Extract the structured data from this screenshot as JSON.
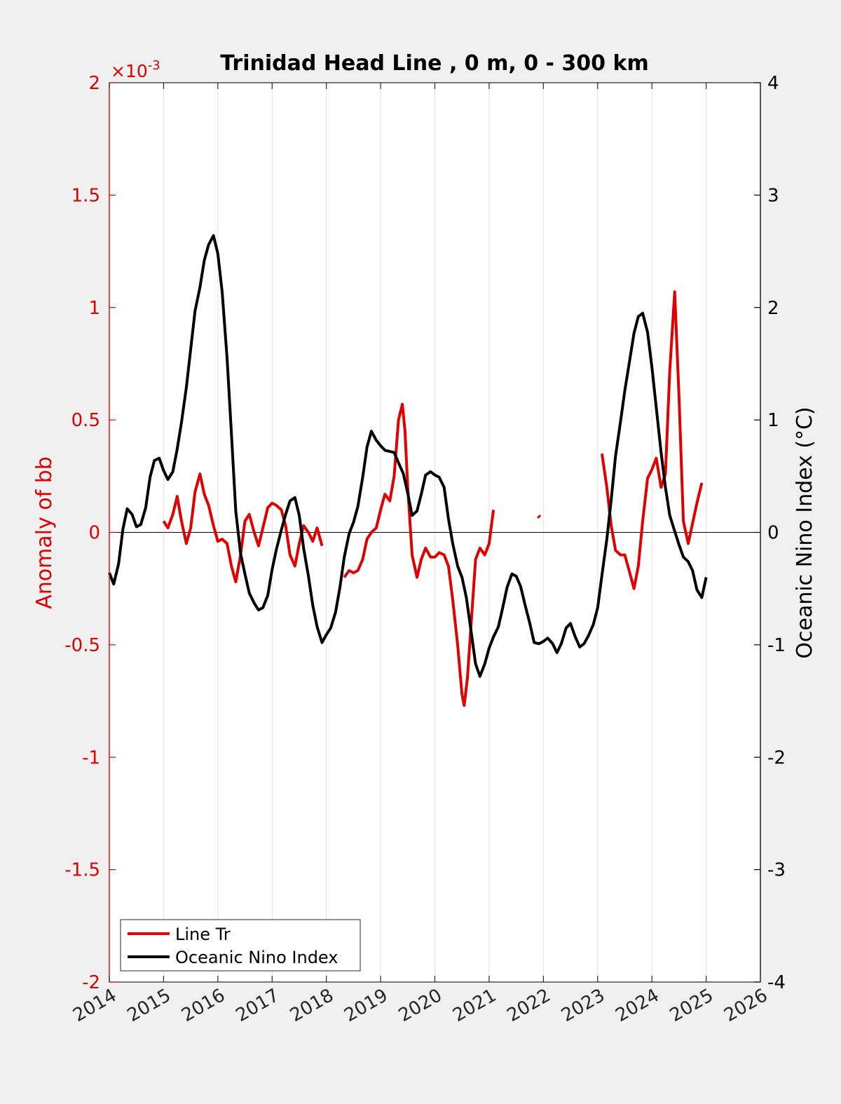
{
  "colors": {
    "background": "#f0f0f0",
    "axes_bg": "#ffffff",
    "left_axis": "#e00000",
    "right_axis": "#000000",
    "grid": "#e2e2e2"
  },
  "chart_data": {
    "type": "line",
    "title": "Trinidad Head Line , 0 m, 0 - 300 km",
    "xlim": [
      2014,
      2026
    ],
    "x_ticks": [
      "2014",
      "2015",
      "2016",
      "2017",
      "2018",
      "2019",
      "2020",
      "2021",
      "2022",
      "2023",
      "2024",
      "2025",
      "2026"
    ],
    "grid_x": true,
    "left_axis": {
      "label": "Anomaly of bb",
      "multiplier": "×10",
      "multiplier_exponent": "-3",
      "ylim": [
        -2,
        2
      ],
      "ticks": [
        "2",
        "1.5",
        "1",
        "0.5",
        "0",
        "-0.5",
        "-1",
        "-1.5",
        "-2"
      ],
      "tick_values": [
        2,
        1.5,
        1,
        0.5,
        0,
        -0.5,
        -1,
        -1.5,
        -2
      ],
      "color": "#e00000"
    },
    "right_axis": {
      "label": "Oceanic Nino Index (°C)",
      "ylim": [
        -4,
        4
      ],
      "ticks": [
        "4",
        "3",
        "2",
        "1",
        "0",
        "-1",
        "-2",
        "-3",
        "-4"
      ],
      "tick_values": [
        4,
        3,
        2,
        1,
        0,
        -1,
        -2,
        -3,
        -4
      ],
      "color": "#000000"
    },
    "legend": {
      "placement": "bottom-left",
      "entries": [
        "Line Tr",
        "Oceanic Nino Index"
      ]
    },
    "series": [
      {
        "name": "Line Tr",
        "axis": "left",
        "color": "#e00000",
        "segments": [
          [
            [
              2015.0,
              0.05
            ],
            [
              2015.08,
              0.02
            ],
            [
              2015.17,
              0.08
            ],
            [
              2015.25,
              0.16
            ],
            [
              2015.33,
              0.05
            ],
            [
              2015.42,
              -0.05
            ],
            [
              2015.5,
              0.02
            ],
            [
              2015.58,
              0.18
            ],
            [
              2015.67,
              0.26
            ],
            [
              2015.75,
              0.17
            ],
            [
              2015.83,
              0.12
            ],
            [
              2015.92,
              0.03
            ],
            [
              2016.0,
              -0.04
            ],
            [
              2016.08,
              -0.03
            ],
            [
              2016.17,
              -0.05
            ],
            [
              2016.25,
              -0.15
            ],
            [
              2016.33,
              -0.22
            ],
            [
              2016.42,
              -0.1
            ],
            [
              2016.5,
              0.05
            ],
            [
              2016.58,
              0.08
            ],
            [
              2016.67,
              0.0
            ],
            [
              2016.75,
              -0.06
            ],
            [
              2016.83,
              0.02
            ],
            [
              2016.92,
              0.11
            ],
            [
              2017.0,
              0.13
            ],
            [
              2017.08,
              0.12
            ],
            [
              2017.17,
              0.1
            ],
            [
              2017.25,
              0.03
            ],
            [
              2017.33,
              -0.1
            ],
            [
              2017.42,
              -0.15
            ],
            [
              2017.5,
              -0.05
            ],
            [
              2017.58,
              0.03
            ],
            [
              2017.67,
              0.0
            ],
            [
              2017.75,
              -0.04
            ],
            [
              2017.83,
              0.02
            ],
            [
              2017.92,
              -0.06
            ]
          ],
          [
            [
              2018.33,
              -0.2
            ],
            [
              2018.42,
              -0.17
            ],
            [
              2018.5,
              -0.18
            ],
            [
              2018.58,
              -0.17
            ],
            [
              2018.67,
              -0.12
            ],
            [
              2018.75,
              -0.03
            ],
            [
              2018.83,
              0.0
            ],
            [
              2018.92,
              0.02
            ],
            [
              2019.0,
              0.1
            ],
            [
              2019.08,
              0.17
            ],
            [
              2019.17,
              0.14
            ],
            [
              2019.25,
              0.25
            ],
            [
              2019.33,
              0.5
            ],
            [
              2019.4,
              0.57
            ],
            [
              2019.45,
              0.45
            ],
            [
              2019.5,
              0.2
            ],
            [
              2019.58,
              -0.1
            ],
            [
              2019.67,
              -0.2
            ],
            [
              2019.75,
              -0.12
            ],
            [
              2019.83,
              -0.07
            ],
            [
              2019.92,
              -0.11
            ],
            [
              2020.0,
              -0.11
            ],
            [
              2020.08,
              -0.09
            ],
            [
              2020.17,
              -0.1
            ],
            [
              2020.25,
              -0.15
            ],
            [
              2020.33,
              -0.3
            ],
            [
              2020.42,
              -0.5
            ],
            [
              2020.5,
              -0.72
            ],
            [
              2020.54,
              -0.77
            ],
            [
              2020.6,
              -0.65
            ],
            [
              2020.67,
              -0.4
            ],
            [
              2020.75,
              -0.12
            ],
            [
              2020.83,
              -0.07
            ],
            [
              2020.92,
              -0.1
            ],
            [
              2021.0,
              -0.05
            ],
            [
              2021.08,
              0.1
            ]
          ]
        ],
        "isolated_points": [
          [
            2021.92,
            0.07
          ]
        ],
        "segments_2": [
          [
            [
              2023.08,
              0.35
            ],
            [
              2023.17,
              0.2
            ],
            [
              2023.25,
              0.03
            ],
            [
              2023.33,
              -0.08
            ],
            [
              2023.42,
              -0.1
            ],
            [
              2023.5,
              -0.1
            ],
            [
              2023.58,
              -0.17
            ],
            [
              2023.67,
              -0.25
            ],
            [
              2023.75,
              -0.15
            ],
            [
              2023.83,
              0.05
            ],
            [
              2023.92,
              0.24
            ],
            [
              2024.0,
              0.28
            ],
            [
              2024.08,
              0.33
            ],
            [
              2024.17,
              0.2
            ],
            [
              2024.25,
              0.26
            ],
            [
              2024.33,
              0.72
            ],
            [
              2024.42,
              1.07
            ],
            [
              2024.5,
              0.6
            ],
            [
              2024.58,
              0.05
            ],
            [
              2024.67,
              -0.05
            ],
            [
              2024.75,
              0.04
            ],
            [
              2024.83,
              0.13
            ],
            [
              2024.92,
              0.22
            ]
          ]
        ]
      },
      {
        "name": "Oceanic Nino Index",
        "axis": "right",
        "color": "#000000",
        "segments": [
          [
            [
              2014.0,
              -0.36
            ],
            [
              2014.08,
              -0.46
            ],
            [
              2014.17,
              -0.28
            ],
            [
              2014.25,
              0.03
            ],
            [
              2014.33,
              0.21
            ],
            [
              2014.42,
              0.16
            ],
            [
              2014.5,
              0.05
            ],
            [
              2014.58,
              0.07
            ],
            [
              2014.67,
              0.22
            ],
            [
              2014.75,
              0.49
            ],
            [
              2014.83,
              0.64
            ],
            [
              2014.92,
              0.66
            ],
            [
              2015.0,
              0.55
            ],
            [
              2015.08,
              0.47
            ],
            [
              2015.17,
              0.54
            ],
            [
              2015.25,
              0.74
            ],
            [
              2015.33,
              0.98
            ],
            [
              2015.42,
              1.29
            ],
            [
              2015.5,
              1.63
            ],
            [
              2015.58,
              1.97
            ],
            [
              2015.67,
              2.18
            ],
            [
              2015.75,
              2.42
            ],
            [
              2015.83,
              2.56
            ],
            [
              2015.92,
              2.64
            ],
            [
              2016.0,
              2.48
            ],
            [
              2016.08,
              2.14
            ],
            [
              2016.17,
              1.55
            ],
            [
              2016.25,
              0.88
            ],
            [
              2016.33,
              0.19
            ],
            [
              2016.42,
              -0.19
            ],
            [
              2016.5,
              -0.37
            ],
            [
              2016.58,
              -0.54
            ],
            [
              2016.67,
              -0.63
            ],
            [
              2016.75,
              -0.69
            ],
            [
              2016.83,
              -0.67
            ],
            [
              2016.92,
              -0.56
            ],
            [
              2017.0,
              -0.33
            ],
            [
              2017.08,
              -0.15
            ],
            [
              2017.17,
              0.02
            ],
            [
              2017.25,
              0.16
            ],
            [
              2017.33,
              0.28
            ],
            [
              2017.42,
              0.31
            ],
            [
              2017.5,
              0.15
            ],
            [
              2017.58,
              -0.14
            ],
            [
              2017.67,
              -0.39
            ],
            [
              2017.75,
              -0.65
            ],
            [
              2017.83,
              -0.84
            ],
            [
              2017.92,
              -0.98
            ],
            [
              2018.0,
              -0.91
            ],
            [
              2018.08,
              -0.85
            ],
            [
              2018.17,
              -0.71
            ],
            [
              2018.25,
              -0.49
            ],
            [
              2018.33,
              -0.22
            ],
            [
              2018.42,
              -0.01
            ],
            [
              2018.5,
              0.09
            ],
            [
              2018.58,
              0.23
            ],
            [
              2018.67,
              0.49
            ],
            [
              2018.75,
              0.76
            ],
            [
              2018.83,
              0.9
            ],
            [
              2018.92,
              0.82
            ],
            [
              2019.0,
              0.77
            ],
            [
              2019.08,
              0.73
            ],
            [
              2019.17,
              0.72
            ],
            [
              2019.25,
              0.71
            ],
            [
              2019.33,
              0.62
            ],
            [
              2019.42,
              0.52
            ],
            [
              2019.5,
              0.35
            ],
            [
              2019.58,
              0.15
            ],
            [
              2019.67,
              0.19
            ],
            [
              2019.75,
              0.34
            ],
            [
              2019.83,
              0.51
            ],
            [
              2019.92,
              0.54
            ],
            [
              2020.0,
              0.51
            ],
            [
              2020.08,
              0.49
            ],
            [
              2020.17,
              0.4
            ],
            [
              2020.25,
              0.12
            ],
            [
              2020.33,
              -0.1
            ],
            [
              2020.42,
              -0.3
            ],
            [
              2020.5,
              -0.4
            ],
            [
              2020.58,
              -0.58
            ],
            [
              2020.67,
              -0.89
            ],
            [
              2020.75,
              -1.17
            ],
            [
              2020.83,
              -1.28
            ],
            [
              2020.92,
              -1.17
            ],
            [
              2021.0,
              -1.03
            ],
            [
              2021.08,
              -0.93
            ],
            [
              2021.17,
              -0.84
            ],
            [
              2021.25,
              -0.67
            ],
            [
              2021.33,
              -0.49
            ],
            [
              2021.42,
              -0.37
            ],
            [
              2021.5,
              -0.39
            ],
            [
              2021.58,
              -0.48
            ],
            [
              2021.67,
              -0.66
            ],
            [
              2021.75,
              -0.81
            ],
            [
              2021.83,
              -0.98
            ],
            [
              2021.92,
              -0.99
            ],
            [
              2022.0,
              -0.97
            ],
            [
              2022.08,
              -0.94
            ],
            [
              2022.17,
              -0.99
            ],
            [
              2022.25,
              -1.07
            ],
            [
              2022.33,
              -0.99
            ],
            [
              2022.42,
              -0.85
            ],
            [
              2022.5,
              -0.81
            ],
            [
              2022.58,
              -0.92
            ],
            [
              2022.67,
              -1.02
            ],
            [
              2022.75,
              -0.99
            ],
            [
              2022.83,
              -0.92
            ],
            [
              2022.92,
              -0.82
            ],
            [
              2023.0,
              -0.67
            ],
            [
              2023.08,
              -0.38
            ],
            [
              2023.17,
              -0.06
            ],
            [
              2023.25,
              0.29
            ],
            [
              2023.33,
              0.68
            ],
            [
              2023.42,
              0.98
            ],
            [
              2023.5,
              1.26
            ],
            [
              2023.58,
              1.5
            ],
            [
              2023.67,
              1.77
            ],
            [
              2023.75,
              1.92
            ],
            [
              2023.83,
              1.95
            ],
            [
              2023.92,
              1.78
            ],
            [
              2024.0,
              1.47
            ],
            [
              2024.08,
              1.11
            ],
            [
              2024.17,
              0.71
            ],
            [
              2024.25,
              0.4
            ],
            [
              2024.33,
              0.15
            ],
            [
              2024.42,
              0.01
            ],
            [
              2024.5,
              -0.11
            ],
            [
              2024.58,
              -0.22
            ],
            [
              2024.67,
              -0.26
            ],
            [
              2024.75,
              -0.34
            ],
            [
              2024.83,
              -0.51
            ],
            [
              2024.92,
              -0.58
            ],
            [
              2025.0,
              -0.4
            ]
          ]
        ]
      }
    ]
  }
}
